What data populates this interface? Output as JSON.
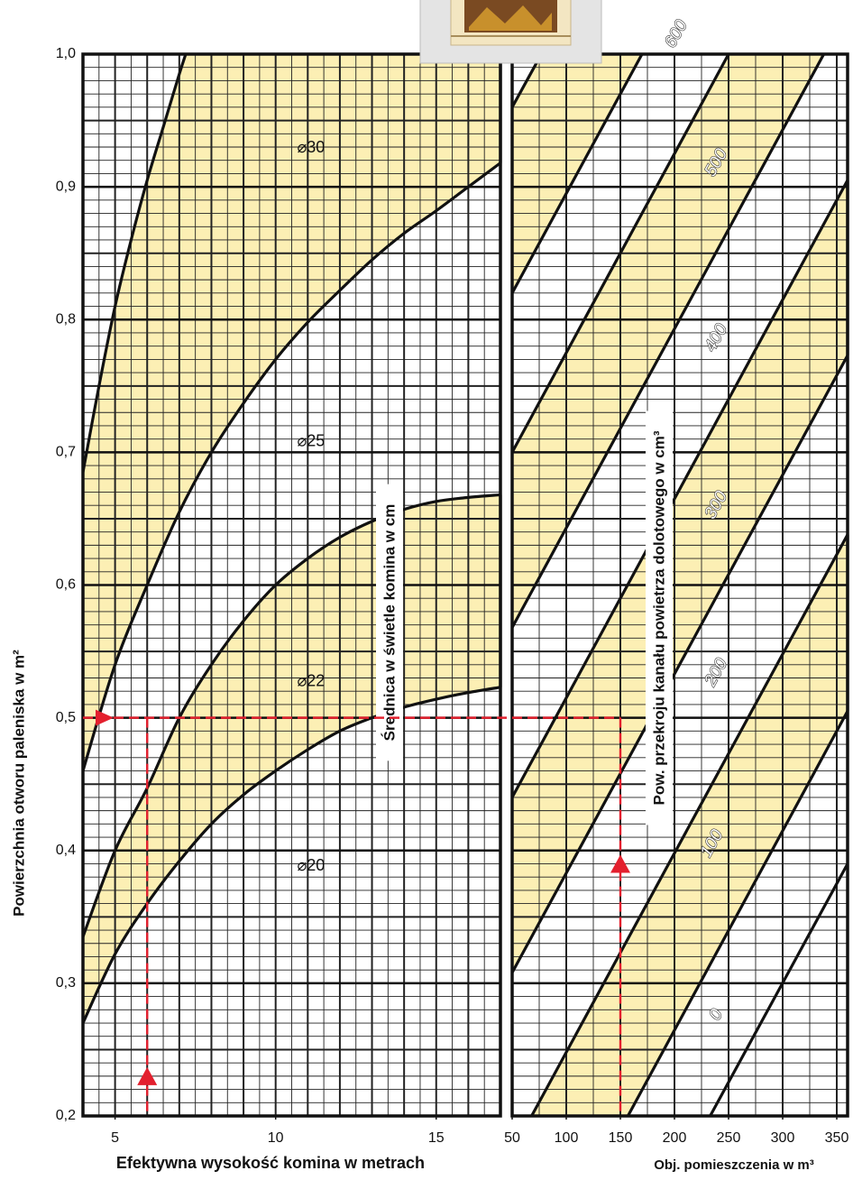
{
  "chart_data": {
    "type": "nomogram",
    "y_label": "Powierzchnia otworu paleniska w m²",
    "ylim": [
      0.2,
      1.0
    ],
    "yticks": [
      {
        "value": 0.2,
        "label": "0,2"
      },
      {
        "value": 0.3,
        "label": "0,3"
      },
      {
        "value": 0.4,
        "label": "0,4"
      },
      {
        "value": 0.5,
        "label": "0,5"
      },
      {
        "value": 0.6,
        "label": "0,6"
      },
      {
        "value": 0.7,
        "label": "0,7"
      },
      {
        "value": 0.8,
        "label": "0,8"
      },
      {
        "value": 0.9,
        "label": "0,9"
      },
      {
        "value": 1.0,
        "label": "1,0"
      }
    ],
    "grid": {
      "y_minor": 0.01,
      "y_major": 0.05
    },
    "fill_color": "#fcefb4",
    "line_color": "#111111",
    "panels": [
      {
        "x_label": "Efektywna wysokość komina w metrach",
        "axis_title": "Średnica w świetle komina w cm",
        "xlim": [
          4,
          17
        ],
        "xticks": [
          5,
          10,
          15
        ],
        "x_minor": 0.5,
        "x_major": 1,
        "bands": [
          {
            "upper": {
              "x": [
                4,
                4.5,
                5,
                5.5,
                6,
                6.5,
                7,
                7.2
              ],
              "y": [
                0.685,
                0.75,
                0.81,
                0.86,
                0.905,
                0.945,
                0.985,
                1.0
              ]
            },
            "lower": {
              "x": [
                4,
                5,
                6,
                7,
                8,
                9,
                10,
                11,
                12,
                13,
                14,
                15,
                16,
                17
              ],
              "y": [
                0.46,
                0.54,
                0.6,
                0.655,
                0.7,
                0.737,
                0.77,
                0.798,
                0.822,
                0.845,
                0.865,
                0.882,
                0.9,
                0.918
              ]
            }
          },
          {
            "upper": {
              "x": [
                4,
                5,
                6,
                7,
                8,
                9,
                10,
                11,
                12,
                13,
                14,
                15,
                16,
                17
              ],
              "y": [
                0.335,
                0.4,
                0.447,
                0.5,
                0.54,
                0.573,
                0.6,
                0.62,
                0.636,
                0.648,
                0.657,
                0.663,
                0.666,
                0.668
              ]
            },
            "lower": {
              "x": [
                4,
                5,
                6,
                7,
                8,
                9,
                10,
                11,
                12,
                13,
                14,
                15,
                16,
                17
              ],
              "y": [
                0.27,
                0.322,
                0.36,
                0.392,
                0.42,
                0.442,
                0.46,
                0.476,
                0.49,
                0.5,
                0.508,
                0.514,
                0.519,
                0.523
              ]
            }
          }
        ],
        "lines": [],
        "labels": [
          {
            "text": "⌀30",
            "x": 11.1,
            "y": 0.929
          },
          {
            "text": "⌀25",
            "x": 11.1,
            "y": 0.708
          },
          {
            "text": "⌀22",
            "x": 11.1,
            "y": 0.527
          },
          {
            "text": "⌀20",
            "x": 11.1,
            "y": 0.388
          }
        ]
      },
      {
        "x_label": "Obj. pomieszczenia w m³",
        "axis_title": "Pow. przekroju kanału powietrza dolotowego w cm³",
        "xlim": [
          50,
          360
        ],
        "xticks": [
          50,
          100,
          150,
          200,
          250,
          300,
          350
        ],
        "x_minor": 25,
        "x_major": 50,
        "bands": [
          {
            "upper": {
              "x": [
                50,
                77
              ],
              "y": [
                0.96,
                1.0
              ]
            },
            "lower": {
              "x": [
                50,
                170
              ],
              "y": [
                0.82,
                1.0
              ]
            }
          },
          {
            "upper": {
              "x": [
                50,
                250
              ],
              "y": [
                0.7,
                1.0
              ]
            },
            "lower": {
              "x": [
                50,
                338
              ],
              "y": [
                0.568,
                1.0
              ]
            }
          },
          {
            "upper": {
              "x": [
                50,
                360
              ],
              "y": [
                0.44,
                0.905
              ]
            },
            "lower": {
              "x": [
                50,
                360
              ],
              "y": [
                0.308,
                0.773
              ]
            }
          },
          {
            "upper": {
              "x": [
                68,
                360
              ],
              "y": [
                0.2,
                0.638
              ]
            },
            "lower": {
              "x": [
                157,
                360
              ],
              "y": [
                0.2,
                0.505
              ]
            }
          }
        ],
        "lines": [
          {
            "x": [
              233,
              360
            ],
            "y": [
              0.2,
              0.39
            ]
          }
        ],
        "labels": [
          {
            "text": "0",
            "x": 239,
            "y": 0.276
          },
          {
            "text": "100",
            "x": 235,
            "y": 0.405
          },
          {
            "text": "200",
            "x": 239,
            "y": 0.534
          },
          {
            "text": "300",
            "x": 239,
            "y": 0.66
          },
          {
            "text": "400",
            "x": 239,
            "y": 0.786
          },
          {
            "text": "500",
            "x": 239,
            "y": 0.918
          },
          {
            "text": "600",
            "x": 202,
            "y": 1.015
          }
        ]
      }
    ],
    "example": {
      "color": "#e3202e",
      "y": 0.5,
      "x": [
        6,
        150
      ],
      "arrow_y": [
        0.23,
        0.39
      ]
    }
  }
}
